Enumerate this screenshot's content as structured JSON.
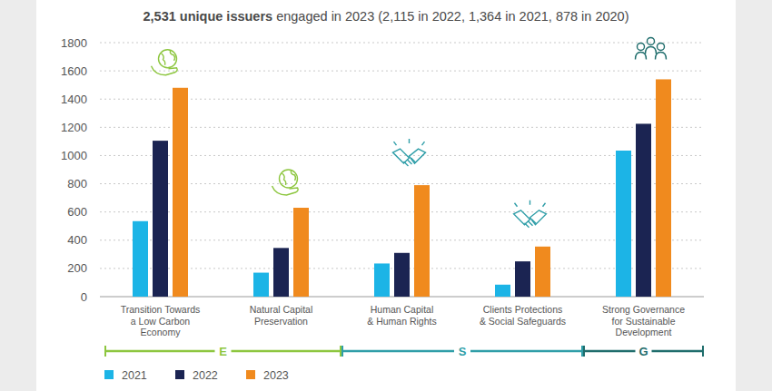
{
  "chart_data": {
    "type": "bar",
    "title": "2,531 unique issuers",
    "subtitle": "engaged in 2023 (2,115 in 2022, 1,364 in 2021, 878 in 2020)",
    "categories": [
      "Transition Towards\na Low Carbon\nEconomy",
      "Natural Capital\nPreservation",
      "Human Capital\n& Human Rights",
      "Clients Protections\n& Social Safeguards",
      "Strong Governance\nfor Sustainable\nDevelopment"
    ],
    "series": [
      {
        "name": "2021",
        "color": "#1cb4e6",
        "values": [
          535,
          170,
          235,
          85,
          1035
        ]
      },
      {
        "name": "2022",
        "color": "#1b2452",
        "values": [
          1105,
          345,
          310,
          250,
          1225
        ]
      },
      {
        "name": "2023",
        "color": "#f08a1e",
        "values": [
          1480,
          630,
          790,
          355,
          1540
        ]
      }
    ],
    "groups": [
      {
        "label": "E",
        "start": 0,
        "end": 1,
        "color": "#8dc63f"
      },
      {
        "label": "S",
        "start": 2,
        "end": 3,
        "color": "#2f9ea8"
      },
      {
        "label": "G",
        "start": 4,
        "end": 4,
        "color": "#1f6d6c"
      }
    ],
    "ylim": [
      0,
      1800
    ],
    "yticks": [
      0,
      200,
      400,
      600,
      800,
      1000,
      1200,
      1400,
      1600,
      1800
    ],
    "grid": true,
    "legend": "bottom-left"
  }
}
